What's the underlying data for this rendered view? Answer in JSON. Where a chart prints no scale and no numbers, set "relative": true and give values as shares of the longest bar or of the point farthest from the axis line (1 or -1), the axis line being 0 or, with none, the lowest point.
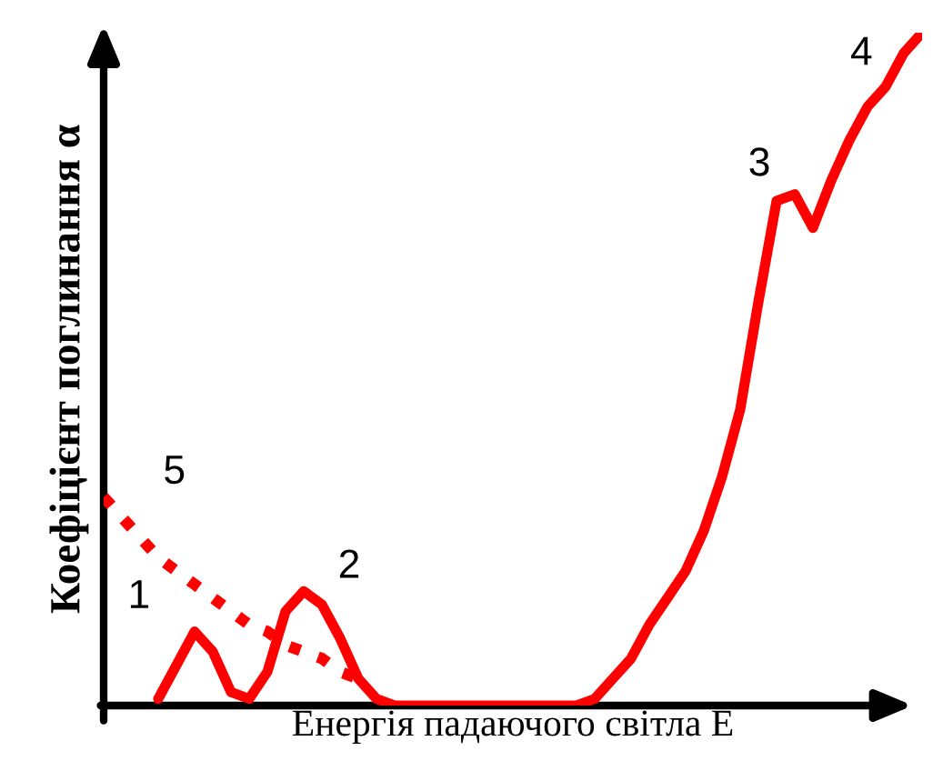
{
  "chart_data": {
    "type": "line",
    "relative": true,
    "xlabel": "Енергія падаючого світла E",
    "ylabel": "Коефіцієнт поглинання α",
    "categories": [
      null,
      null,
      null,
      null,
      null,
      null,
      null,
      null,
      null,
      null,
      null,
      null,
      null,
      null,
      null,
      null,
      null,
      null,
      null,
      null,
      null,
      null,
      null,
      null,
      null,
      null,
      null,
      null,
      null,
      null,
      null,
      null,
      null,
      null,
      null,
      null,
      null,
      null,
      null,
      null,
      null,
      null,
      null,
      null,
      null,
      null
    ],
    "series": [
      {
        "color": "#ff0000",
        "line_style": "solid",
        "values": [
          null,
          null,
          null,
          0.01,
          0.06,
          0.11,
          0.08,
          0.02,
          0.01,
          0.05,
          0.14,
          0.17,
          0.15,
          0.1,
          0.04,
          0.01,
          0,
          0,
          0,
          0,
          0,
          0,
          0,
          0,
          0,
          0,
          0,
          0.01,
          0.04,
          0.07,
          0.12,
          0.16,
          0.2,
          0.26,
          0.34,
          0.44,
          0.6,
          0.75,
          0.76,
          0.71,
          0.78,
          0.84,
          0.89,
          0.92,
          0.97,
          1
        ]
      },
      {
        "color": "#ff0000",
        "line_style": "dotted",
        "values": [
          0.31,
          0.28,
          0.25,
          0.22,
          0.2,
          0.18,
          0.16,
          0.14,
          0.12,
          0.11,
          0.09,
          0.08,
          0.07,
          0.05,
          0.04,
          null,
          null,
          null,
          null,
          null,
          null,
          null,
          null,
          null,
          null,
          null,
          null,
          null,
          null,
          null,
          null,
          null,
          null,
          null,
          null,
          null,
          null,
          null,
          null,
          null,
          null,
          null,
          null,
          null,
          null,
          null
        ]
      }
    ],
    "annotations": [
      "1",
      "2",
      "3",
      "4",
      "5"
    ]
  }
}
